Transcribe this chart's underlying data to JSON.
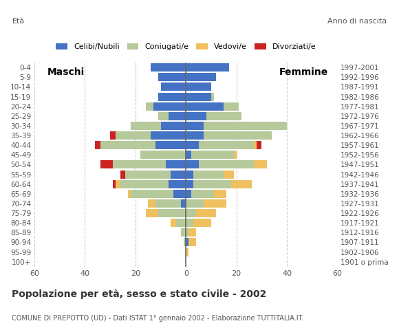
{
  "age_groups": [
    "100+",
    "95-99",
    "90-94",
    "85-89",
    "80-84",
    "75-79",
    "70-74",
    "65-69",
    "60-64",
    "55-59",
    "50-54",
    "45-49",
    "40-44",
    "35-39",
    "30-34",
    "25-29",
    "20-24",
    "15-19",
    "10-14",
    "5-9",
    "0-4"
  ],
  "birth_years": [
    "1901 o prima",
    "1902-1906",
    "1907-1911",
    "1912-1916",
    "1917-1921",
    "1922-1926",
    "1927-1931",
    "1932-1936",
    "1937-1941",
    "1942-1946",
    "1947-1951",
    "1952-1956",
    "1957-1961",
    "1962-1966",
    "1967-1971",
    "1972-1976",
    "1977-1981",
    "1982-1986",
    "1987-1991",
    "1992-1996",
    "1997-2001"
  ],
  "males": {
    "celibe": [
      0,
      0,
      0,
      0,
      0,
      0,
      2,
      5,
      7,
      6,
      8,
      0,
      12,
      14,
      10,
      7,
      13,
      11,
      10,
      11,
      14
    ],
    "coniugato": [
      0,
      0,
      1,
      2,
      4,
      11,
      10,
      17,
      19,
      18,
      21,
      18,
      22,
      14,
      12,
      4,
      3,
      0,
      0,
      0,
      0
    ],
    "vedovo": [
      0,
      0,
      0,
      0,
      2,
      5,
      3,
      1,
      2,
      0,
      0,
      0,
      0,
      0,
      0,
      0,
      0,
      0,
      0,
      0,
      0
    ],
    "divorziato": [
      0,
      0,
      0,
      0,
      0,
      0,
      0,
      0,
      1,
      2,
      5,
      0,
      2,
      2,
      0,
      0,
      0,
      0,
      0,
      0,
      0
    ]
  },
  "females": {
    "nubile": [
      0,
      0,
      1,
      0,
      0,
      0,
      0,
      2,
      3,
      3,
      5,
      2,
      5,
      7,
      7,
      8,
      15,
      10,
      10,
      12,
      17
    ],
    "coniugata": [
      0,
      0,
      0,
      1,
      3,
      4,
      7,
      9,
      15,
      12,
      22,
      17,
      22,
      27,
      33,
      14,
      6,
      1,
      0,
      0,
      0
    ],
    "vedova": [
      0,
      1,
      3,
      3,
      7,
      8,
      9,
      5,
      8,
      4,
      5,
      1,
      1,
      0,
      0,
      0,
      0,
      0,
      0,
      0,
      0
    ],
    "divorziata": [
      0,
      0,
      0,
      0,
      0,
      0,
      0,
      0,
      0,
      0,
      0,
      0,
      2,
      0,
      0,
      0,
      0,
      0,
      0,
      0,
      0
    ]
  },
  "colors": {
    "celibe": "#4472c4",
    "coniugato": "#b5c99a",
    "vedovo": "#f0c060",
    "divorziato": "#cc2222"
  },
  "xlim": 60,
  "title": "Popolazione per eta, sesso e stato civile - 2002",
  "subtitle": "COMUNE DI PREPOTTO (UD) - Dati ISTAT 1° gennaio 2002 - Elaborazione TUTTITALIA.IT",
  "legend_labels": [
    "Celibi/Nubili",
    "Coniugati/e",
    "Vedovi/e",
    "Divorziati/e"
  ],
  "legend_colors": [
    "#4472c4",
    "#b5c99a",
    "#f0c060",
    "#cc2222"
  ],
  "background_color": "#ffffff",
  "grid_color": "#cccccc"
}
